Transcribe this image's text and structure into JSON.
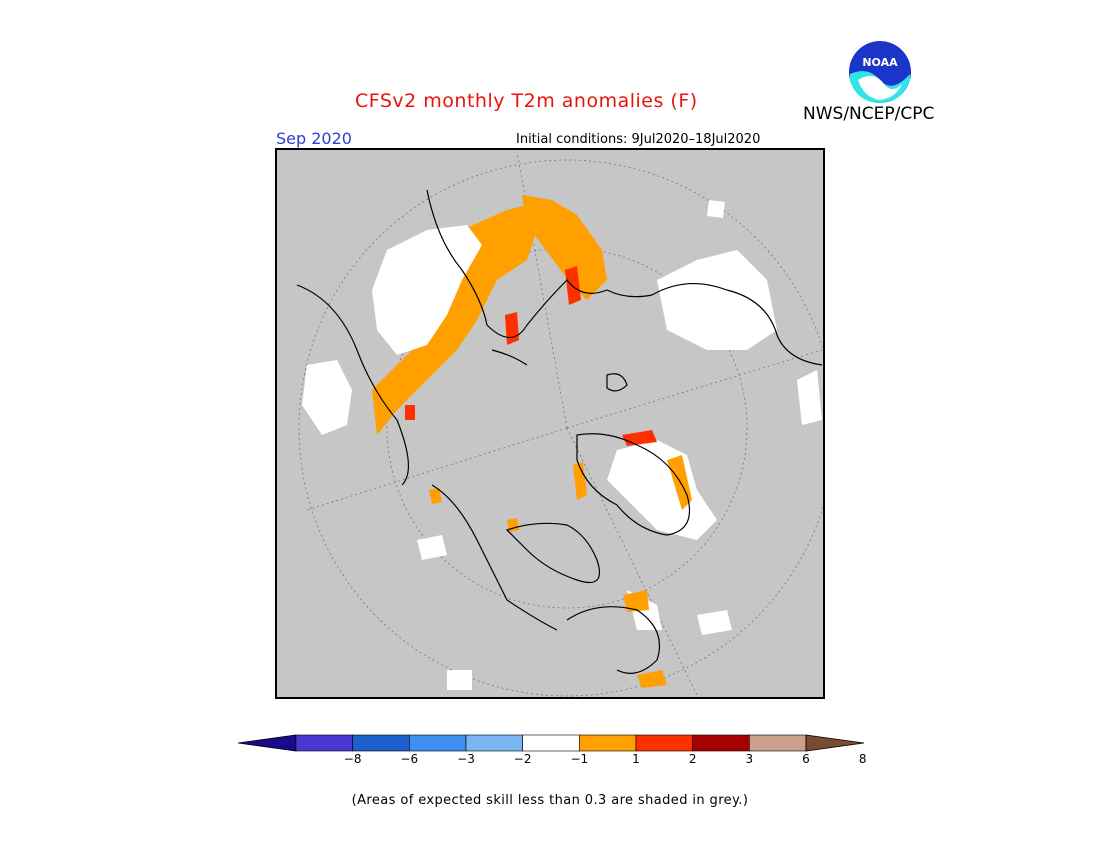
{
  "header": {
    "title": "CFSv2 monthly T2m anomalies (F)",
    "org": "NWS/NCEP/CPC",
    "month": "Sep 2020",
    "initial_conditions": "Initial conditions: 9Jul2020–18Jul2020",
    "logo_text": "NOAA",
    "logo_icon": "noaa-logo-icon"
  },
  "colorbar": {
    "ticks": [
      "−8",
      "−6",
      "−3",
      "−2",
      "−1",
      "1",
      "2",
      "3",
      "6",
      "8"
    ],
    "colors": [
      "#1b0a8c",
      "#4a37d0",
      "#1e5fd0",
      "#3f8ff0",
      "#79b4f3",
      "#ffffff",
      "#ffa000",
      "#ff3000",
      "#a60000",
      "#c9a08e",
      "#7a4a32"
    ]
  },
  "map": {
    "projection": "north-polar-stereographic",
    "skill_shade_color": "#c6c6c6",
    "land_outline_color": "#000000"
  },
  "footnote": "(Areas of expected skill less than 0.3 are shaded in grey.)"
}
